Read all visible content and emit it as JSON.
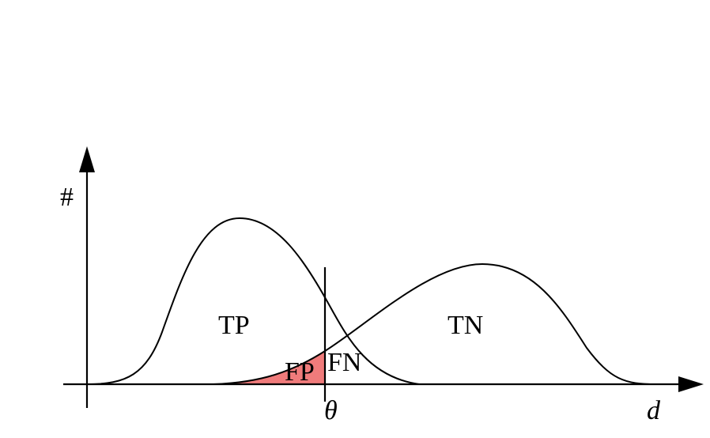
{
  "diagram": {
    "y_axis_label": "#",
    "x_axis_label": "d",
    "threshold_label": "θ",
    "regions": {
      "tp": "TP",
      "tn": "TN",
      "fp": "FP",
      "fn": "FN"
    },
    "colors": {
      "fp_fill": "#f07b7b",
      "stroke": "#000000"
    }
  }
}
